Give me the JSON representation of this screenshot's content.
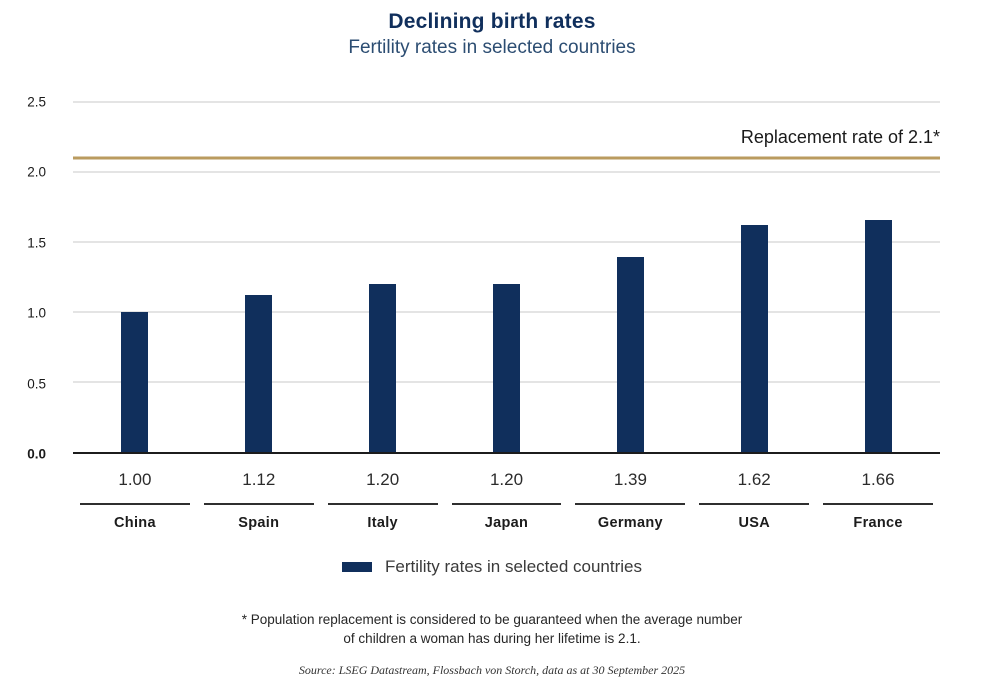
{
  "header": {
    "title": "Declining birth rates",
    "subtitle": "Fertility rates in selected countries"
  },
  "chart_data": {
    "type": "bar",
    "categories": [
      "China",
      "Spain",
      "Italy",
      "Japan",
      "Germany",
      "USA",
      "France"
    ],
    "values": [
      1.0,
      1.12,
      1.2,
      1.2,
      1.39,
      1.62,
      1.66
    ],
    "value_labels": [
      "1.00",
      "1.12",
      "1.20",
      "1.20",
      "1.39",
      "1.62",
      "1.66"
    ],
    "title": "Declining birth rates",
    "subtitle": "Fertility rates in selected countries",
    "xlabel": "",
    "ylabel": "",
    "ylim": [
      0,
      2.5
    ],
    "yticks": [
      0,
      0.5,
      1.0,
      1.5,
      2.0,
      2.5
    ],
    "ytick_labels": [
      "0.0",
      "0.5",
      "1.0",
      "1.5",
      "2.0",
      "2.5"
    ],
    "grid": true,
    "bar_color": "#102f5c",
    "reference_line": {
      "value": 2.1,
      "label": "Replacement rate of 2.1*",
      "color": "#ba9b5f"
    },
    "legend": {
      "position": "bottom",
      "entries": [
        "Fertility rates in selected countries"
      ]
    }
  },
  "legend": {
    "label": "Fertility rates in selected countries",
    "swatch_color": "#102f5c"
  },
  "footnote": {
    "line1": "* Population replacement is considered to be guaranteed when the average number",
    "line2": "of children a woman has during her lifetime is 2.1."
  },
  "source": "Source: LSEG Datastream, Flossbach von Storch, data as at 30 September 2025",
  "colors": {
    "title_navy": "#102f5c",
    "subtitle_blue": "#2c4d72",
    "bar_navy": "#102f5c",
    "reference_gold": "#ba9b5f",
    "gridline_gray": "#c8c8c8",
    "axis_dark": "#1c1c1c"
  }
}
